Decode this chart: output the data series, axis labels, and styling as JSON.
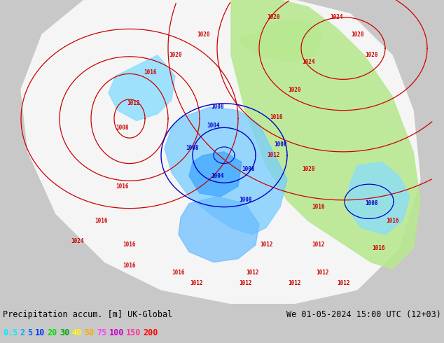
{
  "title_left": "Precipitation accum. [m] UK-Global",
  "title_right": "We 01-05-2024 15:00 UTC (12+03)",
  "legend_values": [
    "0.5",
    "2",
    "5",
    "10",
    "20",
    "30",
    "40",
    "50",
    "75",
    "100",
    "150",
    "200"
  ],
  "legend_colors": [
    "#00eeff",
    "#00aaff",
    "#0066ff",
    "#0033ff",
    "#00dd00",
    "#00aa00",
    "#ffff00",
    "#ffaa00",
    "#ff44ff",
    "#cc00cc",
    "#ff3399",
    "#ff0000"
  ],
  "bg_color": "#b0b090",
  "bottom_bar_color": "#c8c8c8",
  "text_color": "#000000",
  "figsize": [
    6.34,
    4.9
  ],
  "dpi": 100,
  "map_bg": "#b0b090",
  "forecast_white": "#f0f0f0",
  "land_color": "#b8b898",
  "green_precip": "#aade88",
  "blue_light": "#aaeeff",
  "blue_medium": "#66bbff",
  "blue_heavy": "#3388ff",
  "isobar_red_color": "#cc0000",
  "isobar_blue_color": "#0000cc",
  "pressure_labels_red": [
    [
      390,
      415,
      "1020"
    ],
    [
      480,
      415,
      "1024"
    ],
    [
      510,
      390,
      "1028"
    ],
    [
      530,
      360,
      "1028"
    ],
    [
      290,
      390,
      "1020"
    ],
    [
      250,
      360,
      "1020"
    ],
    [
      215,
      335,
      "1016"
    ],
    [
      190,
      290,
      "1012"
    ],
    [
      175,
      255,
      "1008"
    ],
    [
      440,
      350,
      "1024"
    ],
    [
      420,
      310,
      "1020"
    ],
    [
      395,
      270,
      "1016"
    ],
    [
      390,
      215,
      "1012"
    ],
    [
      175,
      170,
      "1016"
    ],
    [
      145,
      120,
      "1016"
    ],
    [
      110,
      90,
      "1024"
    ],
    [
      440,
      195,
      "1020"
    ],
    [
      455,
      140,
      "1016"
    ],
    [
      455,
      85,
      "1012"
    ],
    [
      380,
      85,
      "1012"
    ],
    [
      360,
      45,
      "1012"
    ],
    [
      460,
      45,
      "1012"
    ],
    [
      540,
      80,
      "1016"
    ],
    [
      560,
      120,
      "1016"
    ],
    [
      255,
      45,
      "1016"
    ],
    [
      185,
      55,
      "1016"
    ],
    [
      185,
      85,
      "1016"
    ],
    [
      490,
      30,
      "1012"
    ],
    [
      420,
      30,
      "1012"
    ],
    [
      350,
      30,
      "1012"
    ],
    [
      280,
      30,
      "1012"
    ]
  ],
  "pressure_labels_blue": [
    [
      310,
      285,
      "1008"
    ],
    [
      305,
      258,
      "1004"
    ],
    [
      275,
      225,
      "1008"
    ],
    [
      310,
      185,
      "1004"
    ],
    [
      355,
      195,
      "1008"
    ],
    [
      400,
      230,
      "1008"
    ],
    [
      350,
      150,
      "1008"
    ],
    [
      530,
      145,
      "1008"
    ]
  ]
}
